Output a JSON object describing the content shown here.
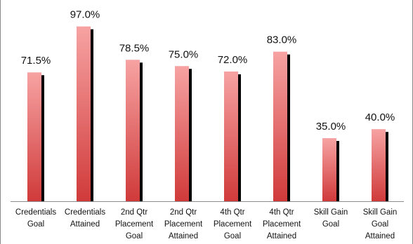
{
  "chart_data": {
    "type": "bar",
    "categories": [
      [
        "Credentials",
        "Goal"
      ],
      [
        "Credentials",
        "Attained"
      ],
      [
        "2nd Qtr",
        "Placement",
        "Goal"
      ],
      [
        "2nd Qtr",
        "Placement",
        "Attained"
      ],
      [
        "4th Qtr",
        "Placement",
        "Goal"
      ],
      [
        "4th Qtr",
        "Placement",
        "Attained"
      ],
      [
        "Skill Gain",
        "Goal"
      ],
      [
        "Skill Gain",
        "Goal",
        "Attained"
      ]
    ],
    "values": [
      71.5,
      97.0,
      78.5,
      75.0,
      72.0,
      83.0,
      35.0,
      40.0
    ],
    "value_labels": [
      "71.5%",
      "97.0%",
      "78.5%",
      "75.0%",
      "72.0%",
      "83.0%",
      "35.0%",
      "40.0%"
    ],
    "ylim": [
      0,
      100
    ],
    "grid": false,
    "legend": "none",
    "colors": {
      "bar_top": "#f7a3a3",
      "bar_bottom": "#d03a3a",
      "shadow": "#000000",
      "axis": "#8c8c8c"
    }
  }
}
